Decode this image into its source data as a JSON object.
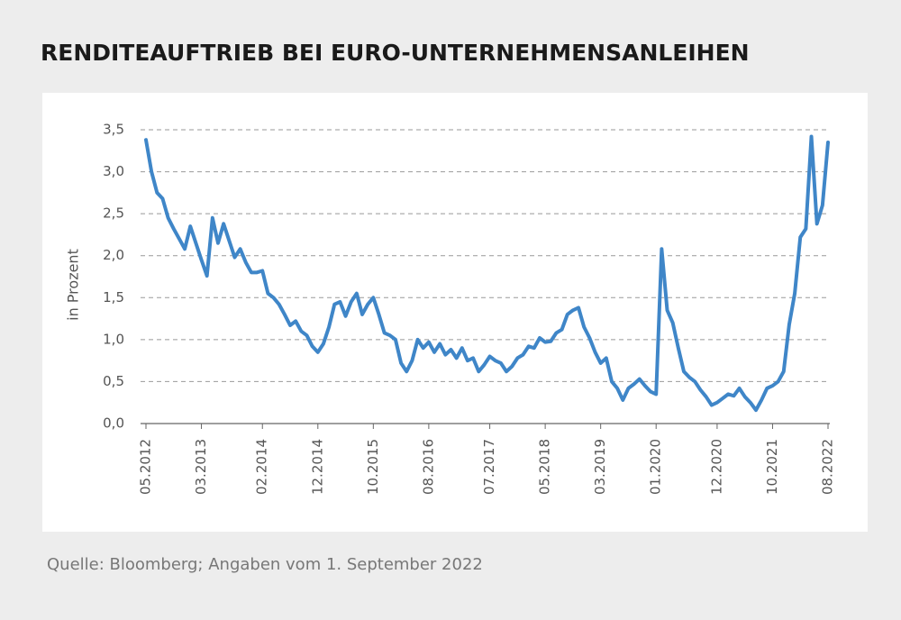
{
  "chart_data": {
    "type": "line",
    "title": "RENDITEAUFTRIEB BEI EURO-UNTERNEHMENSANLEIHEN",
    "y_label": "in Prozent",
    "source": "Quelle: Bloomberg; Angaben vom 1. September 2022",
    "categories": [
      "05.2012",
      "06.2012",
      "07.2012",
      "08.2012",
      "09.2012",
      "10.2012",
      "11.2012",
      "12.2012",
      "01.2013",
      "02.2013",
      "03.2013",
      "04.2013",
      "05.2013",
      "06.2013",
      "07.2013",
      "08.2013",
      "09.2013",
      "10.2013",
      "11.2013",
      "12.2013",
      "01.2014",
      "02.2014",
      "03.2014",
      "04.2014",
      "05.2014",
      "06.2014",
      "07.2014",
      "08.2014",
      "09.2014",
      "10.2014",
      "11.2014",
      "12.2014",
      "01.2015",
      "02.2015",
      "03.2015",
      "04.2015",
      "05.2015",
      "06.2015",
      "07.2015",
      "08.2015",
      "09.2015",
      "10.2015",
      "11.2015",
      "12.2015",
      "01.2016",
      "02.2016",
      "03.2016",
      "04.2016",
      "05.2016",
      "06.2016",
      "07.2016",
      "08.2016",
      "09.2016",
      "10.2016",
      "11.2016",
      "12.2016",
      "01.2017",
      "02.2017",
      "03.2017",
      "04.2017",
      "05.2017",
      "06.2017",
      "07.2017",
      "08.2017",
      "09.2017",
      "10.2017",
      "11.2017",
      "12.2017",
      "01.2018",
      "02.2018",
      "03.2018",
      "04.2018",
      "05.2018",
      "06.2018",
      "07.2018",
      "08.2018",
      "09.2018",
      "10.2018",
      "11.2018",
      "12.2018",
      "01.2019",
      "02.2019",
      "03.2019",
      "04.2019",
      "05.2019",
      "06.2019",
      "07.2019",
      "08.2019",
      "09.2019",
      "10.2019",
      "11.2019",
      "12.2019",
      "01.2020",
      "02.2020",
      "03.2020",
      "04.2020",
      "05.2020",
      "06.2020",
      "07.2020",
      "08.2020",
      "09.2020",
      "10.2020",
      "11.2020",
      "12.2020",
      "01.2021",
      "02.2021",
      "03.2021",
      "04.2021",
      "05.2021",
      "06.2021",
      "07.2021",
      "08.2021",
      "09.2021",
      "10.2021",
      "11.2021",
      "12.2021",
      "01.2022",
      "02.2022",
      "03.2022",
      "04.2022",
      "05.2022",
      "06.2022",
      "07.2022",
      "08.2022"
    ],
    "values": [
      3.38,
      3.0,
      2.75,
      2.68,
      2.45,
      2.32,
      2.2,
      2.08,
      2.35,
      2.15,
      1.95,
      1.76,
      2.45,
      2.15,
      2.38,
      2.18,
      1.98,
      2.08,
      1.92,
      1.8,
      1.8,
      1.82,
      1.55,
      1.5,
      1.42,
      1.3,
      1.17,
      1.22,
      1.1,
      1.05,
      0.92,
      0.85,
      0.95,
      1.15,
      1.42,
      1.45,
      1.28,
      1.45,
      1.55,
      1.3,
      1.42,
      1.5,
      1.3,
      1.08,
      1.05,
      1.0,
      0.72,
      0.62,
      0.75,
      1.0,
      0.9,
      0.97,
      0.85,
      0.95,
      0.82,
      0.88,
      0.78,
      0.9,
      0.75,
      0.78,
      0.62,
      0.7,
      0.8,
      0.75,
      0.72,
      0.62,
      0.68,
      0.78,
      0.82,
      0.92,
      0.9,
      1.02,
      0.97,
      0.98,
      1.08,
      1.12,
      1.3,
      1.35,
      1.38,
      1.15,
      1.02,
      0.85,
      0.72,
      0.78,
      0.5,
      0.42,
      0.28,
      0.42,
      0.47,
      0.53,
      0.45,
      0.38,
      0.35,
      2.08,
      1.35,
      1.2,
      0.9,
      0.62,
      0.55,
      0.5,
      0.4,
      0.32,
      0.22,
      0.25,
      0.3,
      0.35,
      0.33,
      0.42,
      0.32,
      0.25,
      0.16,
      0.28,
      0.42,
      0.45,
      0.5,
      0.62,
      1.18,
      1.55,
      2.22,
      2.32,
      3.42,
      2.38,
      2.6,
      3.35
    ],
    "color": "#3f86c8",
    "xticks": [
      "05.2012",
      "03.2013",
      "02.2014",
      "12.2014",
      "10.2015",
      "08.2016",
      "07.2017",
      "05.2018",
      "03.2019",
      "01.2020",
      "12.2020",
      "10.2021",
      "08.2022"
    ],
    "ylim": [
      0,
      3.5
    ],
    "yticks": [
      {
        "value": 0,
        "label": "0,0"
      },
      {
        "value": 0.5,
        "label": "0,5"
      },
      {
        "value": 1,
        "label": "1,0"
      },
      {
        "value": 1.5,
        "label": "1,5"
      },
      {
        "value": 2,
        "label": "2,0"
      },
      {
        "value": 2.5,
        "label": "2,5"
      },
      {
        "value": 3,
        "label": "3,0"
      },
      {
        "value": 3.5,
        "label": "3,5"
      }
    ],
    "grid": true
  }
}
